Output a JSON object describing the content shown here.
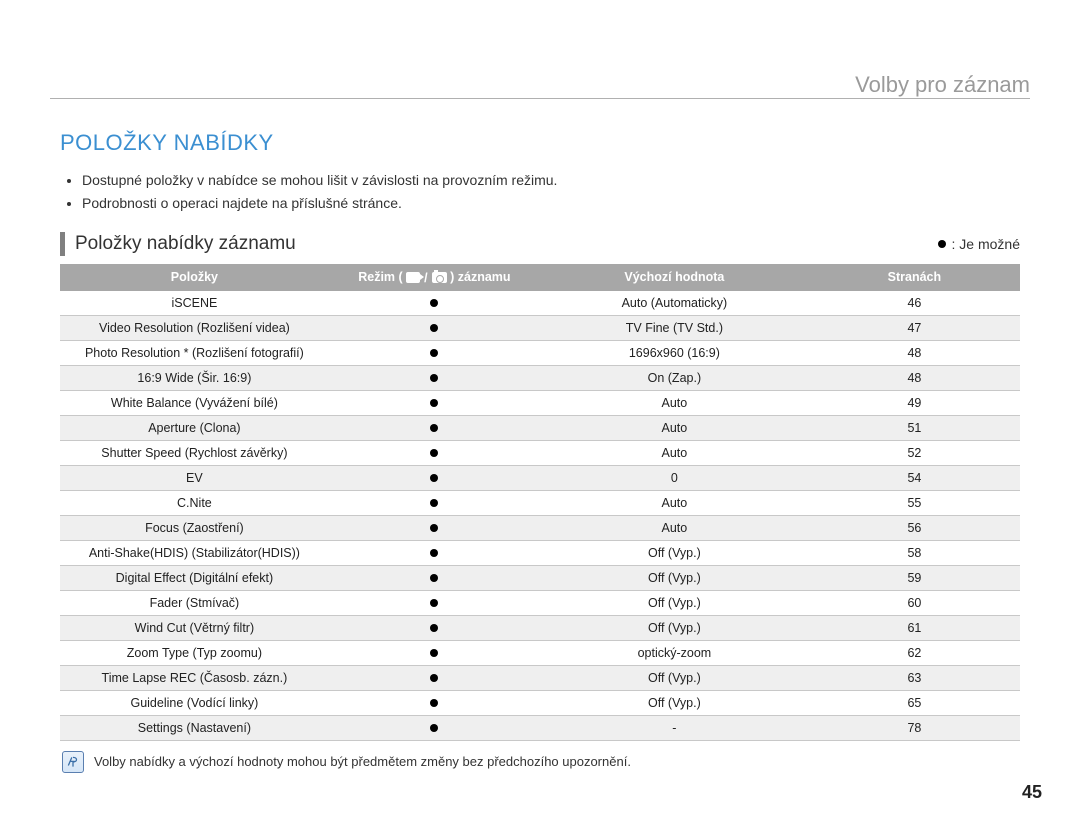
{
  "breadcrumb": "Volby pro záznam",
  "heading": "POLOŽKY NABÍDKY",
  "bullets": [
    "Dostupné položky v nabídce se mohou lišit v závislosti na provozním režimu.",
    "Podrobnosti o operaci najdete na příslušné stránce."
  ],
  "subheading": "Položky nabídky záznamu",
  "legend_text": ": Je možné",
  "columns": {
    "item": "Položky",
    "mode_prefix": "Režim (",
    "mode_sep": "/",
    "mode_suffix": ") záznamu",
    "default": "Výchozí hodnota",
    "page": "Stranách"
  },
  "rows": [
    {
      "item": "iSCENE",
      "default": "Auto (Automaticky)",
      "page": "46"
    },
    {
      "item": "Video Resolution (Rozlišení videa)",
      "default": "TV Fine (TV Std.)",
      "page": "47"
    },
    {
      "item": "Photo Resolution * (Rozlišení fotografií)",
      "default": "1696x960 (16:9)",
      "page": "48"
    },
    {
      "item": "16:9 Wide (Šir. 16:9)",
      "default": "On (Zap.)",
      "page": "48"
    },
    {
      "item": "White Balance (Vyvážení bílé)",
      "default": "Auto",
      "page": "49"
    },
    {
      "item": "Aperture (Clona)",
      "default": "Auto",
      "page": "51"
    },
    {
      "item": "Shutter Speed (Rychlost závěrky)",
      "default": "Auto",
      "page": "52"
    },
    {
      "item": "EV",
      "default": "0",
      "page": "54"
    },
    {
      "item": "C.Nite",
      "default": "Auto",
      "page": "55"
    },
    {
      "item": "Focus (Zaostření)",
      "default": "Auto",
      "page": "56"
    },
    {
      "item": "Anti-Shake(HDIS) (Stabilizátor(HDIS))",
      "default": "Off (Vyp.)",
      "page": "58"
    },
    {
      "item": "Digital Effect (Digitální efekt)",
      "default": "Off (Vyp.)",
      "page": "59"
    },
    {
      "item": "Fader (Stmívač)",
      "default": "Off (Vyp.)",
      "page": "60"
    },
    {
      "item": "Wind Cut (Větrný filtr)",
      "default": "Off (Vyp.)",
      "page": "61"
    },
    {
      "item": "Zoom Type (Typ zoomu)",
      "default": "optický-zoom",
      "page": "62"
    },
    {
      "item": "Time Lapse REC (Časosb. zázn.)",
      "default": "Off (Vyp.)",
      "page": "63"
    },
    {
      "item": "Guideline (Vodící linky)",
      "default": "Off (Vyp.)",
      "page": "65"
    },
    {
      "item": "Settings (Nastavení)",
      "default": "-",
      "page": "78"
    }
  ],
  "footnote": "Volby nabídky a výchozí hodnoty mohou být předmětem změny bez předchozího upozornění.",
  "page_number": "45",
  "colors": {
    "heading": "#3b8fd1",
    "header_bg": "#a7a7a7",
    "header_text": "#ffffff",
    "row_alt_bg": "#efefef",
    "row_border": "#c8c8c8",
    "breadcrumb": "#9a9a9a"
  }
}
